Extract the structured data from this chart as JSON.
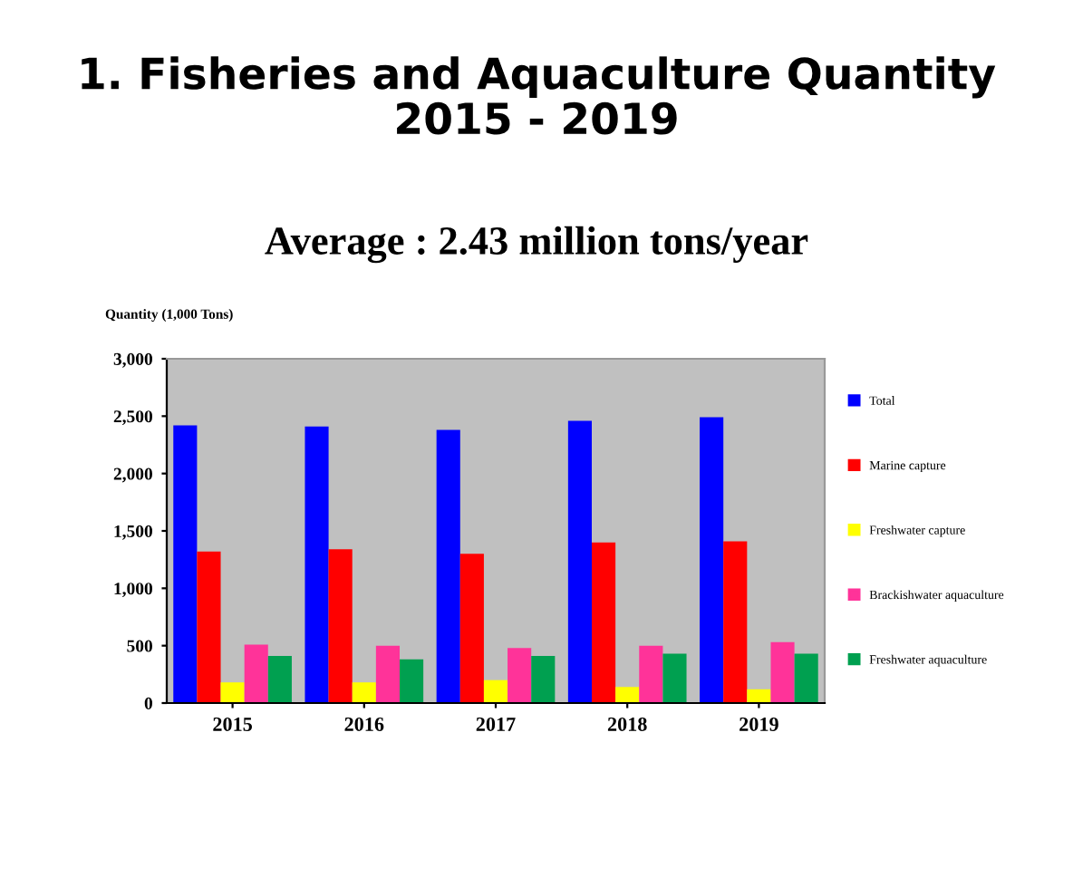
{
  "chart_data": {
    "type": "bar",
    "title": "1. Fisheries and Aquaculture Quantity\n2015 - 2019",
    "subtitle": "Average : 2.43 million tons/year",
    "ylabel": "Quantity (1,000 Tons)",
    "categories": [
      "2015",
      "2016",
      "2017",
      "2018",
      "2019"
    ],
    "series": [
      {
        "name": "Total",
        "color": "#0000ff",
        "values": [
          2420,
          2410,
          2380,
          2460,
          2490
        ]
      },
      {
        "name": "Marine capture",
        "color": "#ff0000",
        "values": [
          1320,
          1340,
          1300,
          1400,
          1410
        ]
      },
      {
        "name": "Freshwater capture",
        "color": "#ffff00",
        "values": [
          180,
          180,
          200,
          140,
          120
        ]
      },
      {
        "name": "Brackishwater aquaculture",
        "color": "#ff3399",
        "values": [
          510,
          500,
          480,
          500,
          530
        ]
      },
      {
        "name": "Freshwater aquaculture",
        "color": "#00a050",
        "values": [
          410,
          380,
          410,
          430,
          430
        ]
      }
    ],
    "ylim": [
      0,
      3000
    ],
    "yticks": [
      0,
      {
        "value": 500,
        "label": "500"
      },
      {
        "value": 1000,
        "label": "1,000"
      },
      {
        "value": 1500,
        "label": "1,500"
      },
      {
        "value": 2000,
        "label": "2,000"
      },
      {
        "value": 2500,
        "label": "2,500"
      },
      {
        "value": 3000,
        "label": "3,000"
      }
    ],
    "grid": false,
    "legend": "right"
  }
}
